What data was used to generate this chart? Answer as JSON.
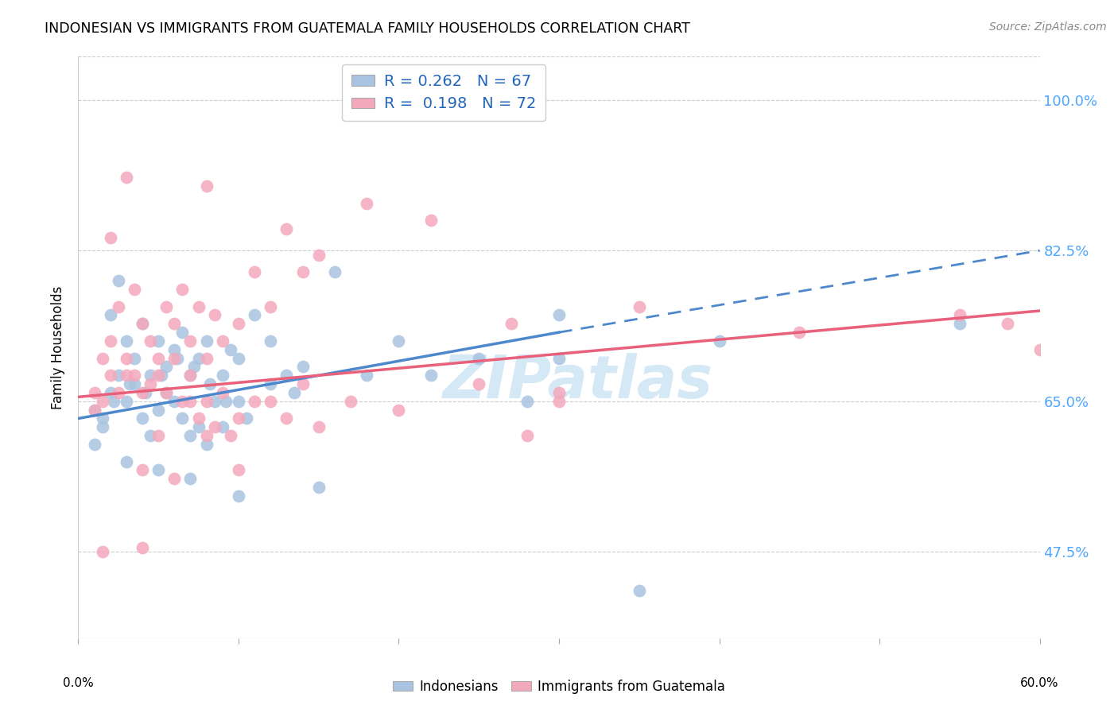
{
  "title": "INDONESIAN VS IMMIGRANTS FROM GUATEMALA FAMILY HOUSEHOLDS CORRELATION CHART",
  "source": "Source: ZipAtlas.com",
  "ylabel": "Family Households",
  "ytick_vals": [
    47.5,
    65.0,
    82.5,
    100.0
  ],
  "xmin": 0.0,
  "xmax": 60.0,
  "ymin": 37.5,
  "ymax": 105.0,
  "legend_label_1": "Indonesians",
  "legend_label_2": "Immigrants from Guatemala",
  "blue_color": "#a8c4e0",
  "pink_color": "#f4a8bc",
  "blue_line_color": "#4d88cc",
  "pink_line_color": "#e8607a",
  "watermark_color": "#d5e8f5",
  "blue_R": 0.262,
  "blue_N": 67,
  "pink_R": 0.198,
  "pink_N": 72,
  "blue_line_x0": 0.0,
  "blue_line_y0": 63.0,
  "blue_line_x1": 60.0,
  "blue_line_y1": 82.5,
  "pink_line_x0": 0.0,
  "pink_line_y0": 65.5,
  "pink_line_x1": 60.0,
  "pink_line_y1": 75.5,
  "blue_solid_x0": 0.0,
  "blue_solid_y0": 63.0,
  "blue_solid_x1": 30.0,
  "blue_solid_y1": 73.0,
  "blue_points_x": [
    2.0,
    2.5,
    3.0,
    3.5,
    4.0,
    4.5,
    5.0,
    5.5,
    6.0,
    6.5,
    7.0,
    7.5,
    8.0,
    8.5,
    9.0,
    9.5,
    10.0,
    11.0,
    12.0,
    13.0,
    14.0,
    16.0,
    20.0,
    25.0,
    30.0,
    1.0,
    1.5,
    2.2,
    3.2,
    4.2,
    5.2,
    6.2,
    7.2,
    8.2,
    9.2,
    10.5,
    13.5,
    18.0,
    30.0,
    1.0,
    1.5,
    2.0,
    2.5,
    3.0,
    3.5,
    4.0,
    4.5,
    5.0,
    5.5,
    6.0,
    6.5,
    7.0,
    7.5,
    8.0,
    9.0,
    10.0,
    12.0,
    15.0,
    22.0,
    28.0,
    35.0,
    40.0,
    55.0,
    3.0,
    5.0,
    7.0,
    10.0
  ],
  "blue_points_y": [
    75.0,
    79.0,
    72.0,
    70.0,
    74.0,
    68.0,
    72.0,
    69.0,
    71.0,
    73.0,
    68.0,
    70.0,
    72.0,
    65.0,
    68.0,
    71.0,
    70.0,
    75.0,
    72.0,
    68.0,
    69.0,
    80.0,
    72.0,
    70.0,
    75.0,
    60.0,
    63.0,
    65.0,
    67.0,
    66.0,
    68.0,
    70.0,
    69.0,
    67.0,
    65.0,
    63.0,
    66.0,
    68.0,
    70.0,
    64.0,
    62.0,
    66.0,
    68.0,
    65.0,
    67.0,
    63.0,
    61.0,
    64.0,
    66.0,
    65.0,
    63.0,
    61.0,
    62.0,
    60.0,
    62.0,
    65.0,
    67.0,
    55.0,
    68.0,
    65.0,
    43.0,
    72.0,
    74.0,
    58.0,
    57.0,
    56.0,
    54.0
  ],
  "pink_points_x": [
    1.5,
    2.0,
    2.5,
    3.0,
    3.5,
    4.0,
    4.5,
    5.0,
    5.5,
    6.0,
    6.5,
    7.0,
    7.5,
    8.0,
    8.5,
    9.0,
    10.0,
    11.0,
    12.0,
    13.0,
    14.0,
    15.0,
    18.0,
    22.0,
    27.0,
    35.0,
    45.0,
    55.0,
    58.0,
    60.0,
    1.0,
    2.0,
    3.0,
    4.0,
    5.0,
    6.0,
    7.0,
    8.0,
    9.0,
    10.0,
    12.0,
    15.0,
    1.0,
    1.5,
    2.5,
    3.5,
    4.5,
    5.5,
    6.5,
    7.5,
    8.5,
    9.5,
    11.0,
    14.0,
    17.0,
    20.0,
    25.0,
    30.0,
    4.0,
    6.0,
    8.0,
    10.0,
    30.0,
    13.0,
    28.0,
    3.0,
    2.0,
    8.0,
    1.5,
    7.0,
    5.0,
    4.0
  ],
  "pink_points_y": [
    70.0,
    72.0,
    76.0,
    68.0,
    78.0,
    74.0,
    72.0,
    70.0,
    76.0,
    74.0,
    78.0,
    72.0,
    76.0,
    70.0,
    75.0,
    72.0,
    74.0,
    80.0,
    76.0,
    85.0,
    80.0,
    82.0,
    88.0,
    86.0,
    74.0,
    76.0,
    73.0,
    75.0,
    74.0,
    71.0,
    66.0,
    68.0,
    70.0,
    66.0,
    68.0,
    70.0,
    68.0,
    65.0,
    66.0,
    63.0,
    65.0,
    62.0,
    64.0,
    65.0,
    66.0,
    68.0,
    67.0,
    66.0,
    65.0,
    63.0,
    62.0,
    61.0,
    65.0,
    67.0,
    65.0,
    64.0,
    67.0,
    66.0,
    48.0,
    56.0,
    61.0,
    57.0,
    65.0,
    63.0,
    61.0,
    91.0,
    84.0,
    90.0,
    47.5,
    65.0,
    61.0,
    57.0
  ]
}
